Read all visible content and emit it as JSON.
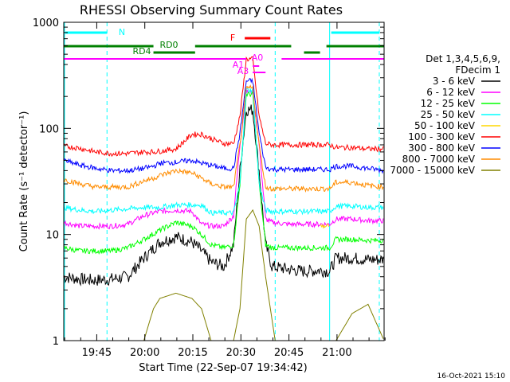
{
  "chart_data": {
    "type": "line",
    "title": "RHESSI Observing Summary Count Rates",
    "xlabel": "Start Time (22-Sep-07 19:34:42)",
    "ylabel": "Count Rate (s⁻¹ detector⁻¹)",
    "ylog": true,
    "ylim": [
      1,
      1000
    ],
    "xlim_minutes_after_start": [
      0,
      100
    ],
    "x_ticks": [
      {
        "label": "19:45",
        "minutes": 10.3
      },
      {
        "label": "20:00",
        "minutes": 25.3
      },
      {
        "label": "20:15",
        "minutes": 40.3
      },
      {
        "label": "20:30",
        "minutes": 55.3
      },
      {
        "label": "20:45",
        "minutes": 70.3
      },
      {
        "label": "21:00",
        "minutes": 85.3
      }
    ],
    "y_ticks": [
      {
        "label": "1",
        "value": 1
      },
      {
        "label": "10",
        "value": 10
      },
      {
        "label": "100",
        "value": 100
      },
      {
        "label": "1000",
        "value": 1000
      }
    ],
    "legend": {
      "header": [
        "Det 1,3,4,5,6,9,",
        "FDecim 1"
      ],
      "placement": "right"
    },
    "series": [
      {
        "name": "3 - 6 keV",
        "color": "#000000",
        "x": [
          0,
          5,
          10,
          15,
          20,
          25,
          30,
          35,
          40,
          43,
          46,
          50,
          53,
          55,
          57,
          59,
          61,
          63,
          65,
          70,
          75,
          80,
          83,
          85,
          90,
          95,
          100
        ],
        "y": [
          4,
          3.8,
          3.7,
          3.8,
          4,
          6,
          8.5,
          9.5,
          8.5,
          7,
          5.5,
          5,
          8,
          40,
          150,
          150,
          40,
          8,
          5,
          4.7,
          4.5,
          4.6,
          4.5,
          6,
          6,
          5.8,
          5.8
        ]
      },
      {
        "name": "6 - 12 keV",
        "color": "#ff00ff",
        "x": [
          0,
          5,
          10,
          15,
          20,
          25,
          28,
          30,
          35,
          40,
          43,
          46,
          50,
          53,
          55,
          57,
          59,
          61,
          63,
          65,
          70,
          75,
          80,
          83,
          85,
          90,
          95,
          100
        ],
        "y": [
          13,
          12,
          12,
          12,
          12.5,
          15,
          16,
          16.5,
          17,
          16.5,
          12.5,
          12,
          12,
          15,
          70,
          220,
          220,
          70,
          14,
          13,
          12.5,
          12.5,
          12.5,
          12.5,
          14,
          14,
          13.5,
          13.5
        ]
      },
      {
        "name": "12 - 25 keV",
        "color": "#00ff00",
        "x": [
          0,
          5,
          10,
          15,
          20,
          25,
          30,
          35,
          40,
          43,
          46,
          50,
          53,
          55,
          57,
          59,
          61,
          63,
          65,
          70,
          75,
          80,
          83,
          85,
          90,
          95,
          100
        ],
        "y": [
          7.5,
          7,
          7,
          7,
          7.5,
          9,
          11,
          13,
          12,
          10,
          8,
          7.5,
          8,
          30,
          210,
          210,
          30,
          8,
          7.5,
          7.5,
          7.5,
          7.5,
          7.5,
          9,
          9,
          8.8,
          8.8
        ]
      },
      {
        "name": "25 - 50 keV",
        "color": "#00ffff",
        "x": [
          0,
          5,
          10,
          15,
          20,
          25,
          30,
          35,
          40,
          43,
          46,
          50,
          53,
          55,
          57,
          59,
          61,
          63,
          65,
          70,
          75,
          80,
          83,
          85,
          90,
          95,
          100
        ],
        "y": [
          18,
          17,
          16.5,
          17,
          17.5,
          18,
          18,
          19,
          19,
          19,
          16,
          16,
          16,
          30,
          230,
          230,
          30,
          17,
          16.5,
          16.5,
          16.5,
          16.5,
          16.5,
          18.5,
          18.5,
          18,
          18
        ]
      },
      {
        "name": "50 - 100 keV",
        "color": "#ffd700",
        "x": [
          0,
          40,
          46,
          53,
          55,
          57,
          59,
          61,
          63,
          65,
          75,
          80,
          83,
          85,
          100
        ],
        "y": [
          null,
          17,
          null,
          null,
          null,
          null,
          null,
          null,
          null,
          null,
          null,
          12,
          12,
          null,
          null
        ]
      },
      {
        "name": "100 - 300 keV",
        "color": "#ff0000",
        "x": [
          0,
          5,
          10,
          15,
          20,
          25,
          28,
          30,
          35,
          40,
          43,
          46,
          50,
          53,
          55,
          57,
          59,
          61,
          63,
          65,
          70,
          75,
          80,
          83,
          85,
          90,
          95,
          100
        ],
        "y": [
          68,
          65,
          60,
          58,
          58,
          60,
          60,
          61,
          64,
          88,
          88,
          80,
          72,
          72,
          130,
          450,
          450,
          130,
          72,
          70,
          70,
          70,
          70,
          70,
          66,
          66,
          64,
          64
        ]
      },
      {
        "name": "300 - 800 keV",
        "color": "#0000ff",
        "x": [
          0,
          5,
          10,
          15,
          20,
          25,
          28,
          30,
          35,
          40,
          43,
          46,
          50,
          53,
          55,
          57,
          59,
          61,
          63,
          65,
          70,
          75,
          80,
          83,
          85,
          90,
          95,
          100
        ],
        "y": [
          50,
          45,
          42,
          40,
          40,
          42,
          44,
          47,
          48,
          50,
          47,
          45,
          42,
          42,
          90,
          280,
          280,
          90,
          43,
          41,
          41,
          41,
          41,
          41,
          44,
          44,
          42,
          40
        ]
      },
      {
        "name": "800 - 7000 keV",
        "color": "#ff8c00",
        "x": [
          0,
          5,
          10,
          15,
          20,
          25,
          28,
          30,
          35,
          40,
          43,
          46,
          50,
          53,
          55,
          57,
          59,
          61,
          63,
          65,
          70,
          75,
          80,
          83,
          85,
          90,
          95,
          100
        ],
        "y": [
          33,
          30,
          28,
          28,
          28,
          32,
          34,
          36,
          40,
          38,
          34,
          30,
          28,
          28,
          70,
          240,
          240,
          70,
          28,
          27,
          27,
          27,
          27,
          27,
          31,
          31,
          29,
          28
        ]
      },
      {
        "name": "7000 - 15000 keV",
        "color": "#808000",
        "x": [
          0,
          20,
          25,
          28,
          30,
          35,
          40,
          43,
          46,
          53,
          55,
          57,
          59,
          61,
          63,
          66,
          75,
          80,
          83,
          85,
          90,
          95,
          100
        ],
        "y": [
          1,
          1,
          1,
          2,
          2.5,
          2.8,
          2.5,
          2,
          1,
          1,
          2,
          14,
          17,
          12,
          4,
          1,
          1,
          1,
          1,
          1,
          1.8,
          2.2,
          1
        ]
      }
    ],
    "attenuator_bars": [
      {
        "label": "N",
        "color": "#00ffff"
      },
      {
        "label": "RD0",
        "color": "#008000"
      },
      {
        "label": "RD4",
        "color": "#008000"
      },
      {
        "label": "F",
        "color": "#ff0000"
      },
      {
        "label": "A1",
        "color": "#ff00ff"
      },
      {
        "label": "A0",
        "color": "#ff00ff"
      },
      {
        "label": "A3",
        "color": "#ff00ff"
      }
    ],
    "footer_date": "16-Oct-2021 15:10",
    "grid": false
  }
}
